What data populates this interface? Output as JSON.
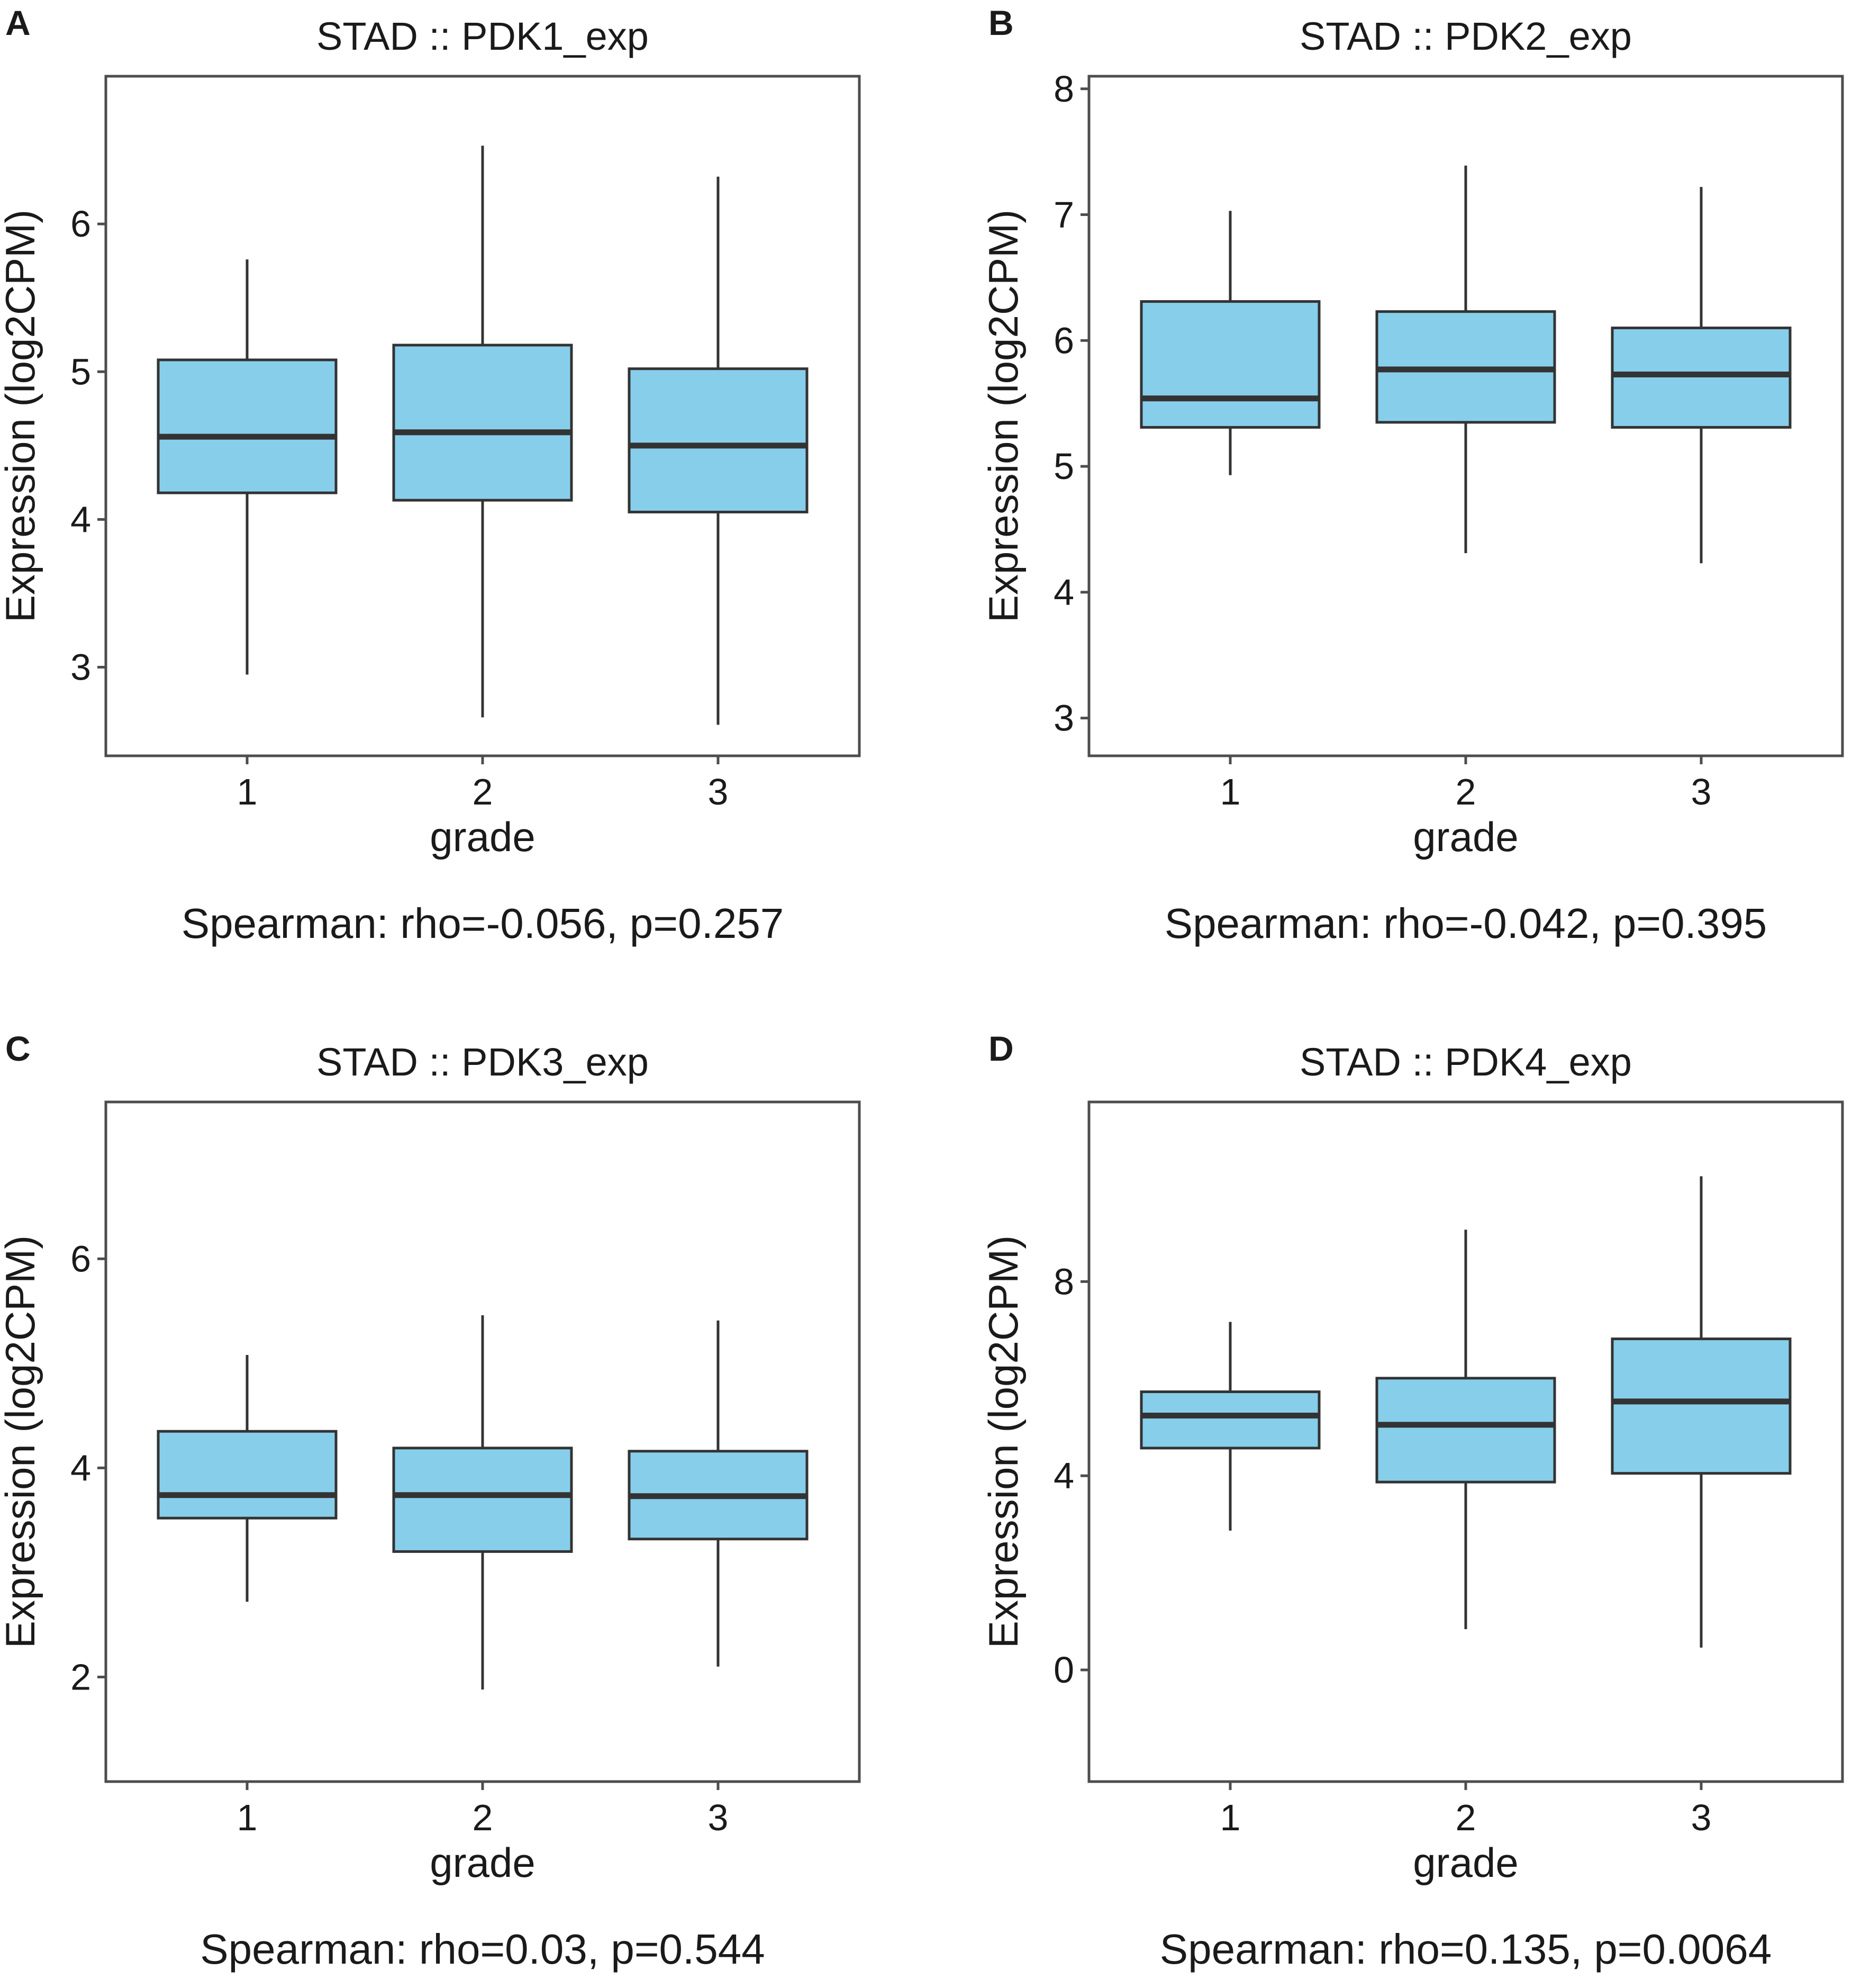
{
  "style": {
    "box_fill": "#87ceeb",
    "stroke": "#333333",
    "frame": "#4d4d4d"
  },
  "chart_data": [
    {
      "panel": "A",
      "type": "box",
      "title": "STAD  ::  PDK1_exp",
      "xlabel": "grade",
      "ylabel": "Expression (log2CPM)",
      "categories": [
        "1",
        "2",
        "3"
      ],
      "yticks": [
        3,
        4,
        5,
        6
      ],
      "ylim": [
        2.4,
        7.0
      ],
      "boxes": [
        {
          "category": "1",
          "whisker_low": 2.95,
          "q1": 4.18,
          "median": 4.56,
          "q3": 5.08,
          "whisker_high": 5.76
        },
        {
          "category": "2",
          "whisker_low": 2.66,
          "q1": 4.13,
          "median": 4.59,
          "q3": 5.18,
          "whisker_high": 6.53
        },
        {
          "category": "3",
          "whisker_low": 2.61,
          "q1": 4.05,
          "median": 4.5,
          "q3": 5.02,
          "whisker_high": 6.32
        }
      ],
      "annotation": "Spearman: rho=-0.056, p=0.257"
    },
    {
      "panel": "B",
      "type": "box",
      "title": "STAD  ::  PDK2_exp",
      "xlabel": "grade",
      "ylabel": "Expression (log2CPM)",
      "categories": [
        "1",
        "2",
        "3"
      ],
      "yticks": [
        3,
        4,
        5,
        6,
        7,
        8
      ],
      "ylim": [
        2.7,
        8.1
      ],
      "boxes": [
        {
          "category": "1",
          "whisker_low": 4.93,
          "q1": 5.31,
          "median": 5.54,
          "q3": 6.31,
          "whisker_high": 7.03
        },
        {
          "category": "2",
          "whisker_low": 4.31,
          "q1": 5.35,
          "median": 5.77,
          "q3": 6.23,
          "whisker_high": 7.39
        },
        {
          "category": "3",
          "whisker_low": 4.23,
          "q1": 5.31,
          "median": 5.73,
          "q3": 6.1,
          "whisker_high": 7.22
        }
      ],
      "annotation": "Spearman: rho=-0.042, p=0.395"
    },
    {
      "panel": "C",
      "type": "box",
      "title": "STAD  ::  PDK3_exp",
      "xlabel": "grade",
      "ylabel": "Expression (log2CPM)",
      "categories": [
        "1",
        "2",
        "3"
      ],
      "yticks": [
        2,
        4,
        6
      ],
      "ylim": [
        1.0,
        7.5
      ],
      "boxes": [
        {
          "category": "1",
          "whisker_low": 2.72,
          "q1": 3.52,
          "median": 3.74,
          "q3": 4.35,
          "whisker_high": 5.08
        },
        {
          "category": "2",
          "whisker_low": 1.88,
          "q1": 3.2,
          "median": 3.74,
          "q3": 4.19,
          "whisker_high": 5.46
        },
        {
          "category": "3",
          "whisker_low": 2.1,
          "q1": 3.32,
          "median": 3.73,
          "q3": 4.16,
          "whisker_high": 5.41
        }
      ],
      "annotation": "Spearman: rho=0.03, p=0.544"
    },
    {
      "panel": "D",
      "type": "box",
      "title": "STAD  ::  PDK4_exp",
      "xlabel": "grade",
      "ylabel": "Expression (log2CPM)",
      "categories": [
        "1",
        "2",
        "3"
      ],
      "yticks": [
        0,
        4,
        8
      ],
      "ylim": [
        -2.3,
        11.7
      ],
      "boxes": [
        {
          "category": "1",
          "whisker_low": 2.87,
          "q1": 4.57,
          "median": 5.24,
          "q3": 5.73,
          "whisker_high": 7.17
        },
        {
          "category": "2",
          "whisker_low": 0.84,
          "q1": 3.87,
          "median": 5.05,
          "q3": 6.01,
          "whisker_high": 9.07
        },
        {
          "category": "3",
          "whisker_low": 0.46,
          "q1": 4.05,
          "median": 5.53,
          "q3": 6.82,
          "whisker_high": 10.17
        }
      ],
      "annotation": "Spearman: rho=0.135, p=0.0064"
    }
  ]
}
